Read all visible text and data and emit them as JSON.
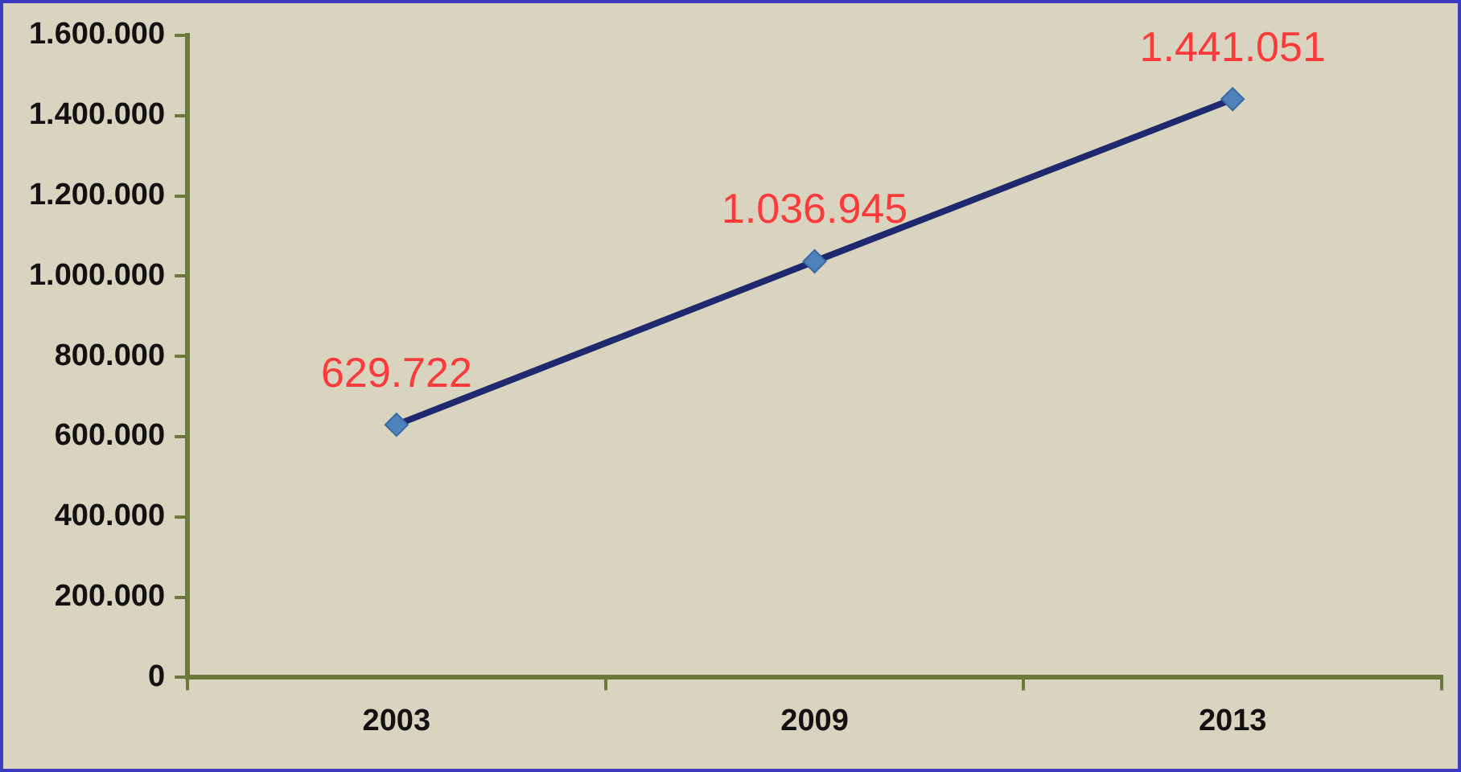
{
  "chart_data": {
    "type": "line",
    "categories": [
      "2003",
      "2009",
      "2013"
    ],
    "series": [
      {
        "color": "#1f2a6e",
        "values": [
          629722,
          1036945,
          1441051
        ]
      }
    ],
    "value_labels": [
      "629.722",
      "1.036.945",
      "1.441.051"
    ],
    "marker": "diamond",
    "ylim": [
      0,
      1600000
    ],
    "yticks": [
      {
        "value": 0,
        "label": "0"
      },
      {
        "value": 200000,
        "label": "200.000"
      },
      {
        "value": 400000,
        "label": "400.000"
      },
      {
        "value": 600000,
        "label": "600.000"
      },
      {
        "value": 800000,
        "label": "800.000"
      },
      {
        "value": 1000000,
        "label": "1.000.000"
      },
      {
        "value": 1200000,
        "label": "1.200.000"
      },
      {
        "value": 1400000,
        "label": "1.400.000"
      },
      {
        "value": 1600000,
        "label": "1.600.000"
      }
    ],
    "legend": false
  }
}
